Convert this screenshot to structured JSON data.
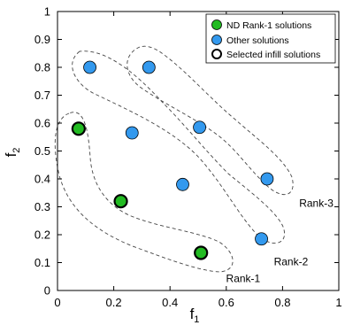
{
  "chart_data": {
    "type": "scatter",
    "xlabel": "f",
    "xlabel_sub": "1",
    "ylabel": "f",
    "ylabel_sub": "2",
    "xlim": [
      0,
      1
    ],
    "ylim": [
      0,
      1
    ],
    "xticks": [
      "0",
      "0.2",
      "0.4",
      "0.6",
      "0.8",
      "1"
    ],
    "yticks": [
      "0",
      "0.1",
      "0.2",
      "0.3",
      "0.4",
      "0.5",
      "0.6",
      "0.7",
      "0.8",
      "0.9",
      "1"
    ],
    "grid": false,
    "legend_position": "top-right",
    "legend": [
      {
        "label": "ND Rank-1 solutions",
        "color": "#22bb22",
        "border": "#000000"
      },
      {
        "label": "Other solutions",
        "color": "#3399ee",
        "border": "#000000"
      },
      {
        "label": "Selected infill solutions",
        "color": "#ffffff",
        "border": "#000000"
      }
    ],
    "series": [
      {
        "name": "ND Rank-1 solutions",
        "color": "#22bb22",
        "points": [
          {
            "x": 0.075,
            "y": 0.58,
            "selected": true
          },
          {
            "x": 0.225,
            "y": 0.32,
            "selected": true
          },
          {
            "x": 0.51,
            "y": 0.135,
            "selected": true
          }
        ]
      },
      {
        "name": "Other solutions",
        "color": "#3399ee",
        "points": [
          {
            "x": 0.115,
            "y": 0.8
          },
          {
            "x": 0.325,
            "y": 0.8
          },
          {
            "x": 0.265,
            "y": 0.565
          },
          {
            "x": 0.505,
            "y": 0.585
          },
          {
            "x": 0.445,
            "y": 0.38
          },
          {
            "x": 0.745,
            "y": 0.4
          },
          {
            "x": 0.725,
            "y": 0.185
          }
        ]
      }
    ],
    "annotations": [
      {
        "text": "Rank-1",
        "x": 0.66,
        "y": 0.03
      },
      {
        "text": "Rank-2",
        "x": 0.83,
        "y": 0.09
      },
      {
        "text": "Rank-3",
        "x": 0.92,
        "y": 0.3
      }
    ]
  }
}
